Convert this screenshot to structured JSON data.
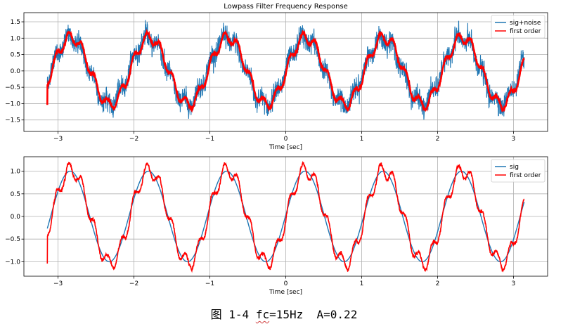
{
  "caption": {
    "prefix": "图 1-4 ",
    "fc": "fc",
    "suffix": "=15Hz  A=0.22"
  },
  "colors": {
    "blue": "#1f77b4",
    "red": "#ff0000",
    "grid": "#b0b0b0"
  },
  "chart_data": [
    {
      "type": "line",
      "title": "Lowpass Filter Frequency Response",
      "xlabel": "Time [sec]",
      "ylabel": "",
      "xlim": [
        -3.45,
        3.45
      ],
      "ylim": [
        -1.85,
        1.78
      ],
      "xticks": [
        -3,
        -2,
        -1,
        0,
        1,
        2,
        3
      ],
      "xtick_labels": [
        "−3",
        "−2",
        "−1",
        "0",
        "1",
        "2",
        "3"
      ],
      "yticks": [
        -1.5,
        -1.0,
        -0.5,
        0.0,
        0.5,
        1.0,
        1.5
      ],
      "ytick_labels": [
        "−1.5",
        "−1.0",
        "−0.5",
        "0.0",
        "0.5",
        "1.0",
        "1.5"
      ],
      "grid": true,
      "legend": "top-right",
      "x_range": [
        -3.14159,
        3.14159
      ],
      "series": [
        {
          "name": "sig+noise",
          "color": "#1f77b4",
          "formula": "sin(2*pi*f0*t + 0.03) + noise",
          "f0": 0.97,
          "noise_amplitude": 0.22
        },
        {
          "name": "first order",
          "color": "#ff0000",
          "formula": "lowpass-filtered sig+noise (fc = 15 Hz)"
        }
      ]
    },
    {
      "type": "line",
      "title": "",
      "xlabel": "Time [sec]",
      "ylabel": "",
      "xlim": [
        -3.45,
        3.45
      ],
      "ylim": [
        -1.32,
        1.32
      ],
      "xticks": [
        -3,
        -2,
        -1,
        0,
        1,
        2,
        3
      ],
      "xtick_labels": [
        "−3",
        "−2",
        "−1",
        "0",
        "1",
        "2",
        "3"
      ],
      "yticks": [
        -1.0,
        -0.5,
        0.0,
        0.5,
        1.0
      ],
      "ytick_labels": [
        "−1.0",
        "−0.5",
        "0.0",
        "0.5",
        "1.0"
      ],
      "grid": true,
      "legend": "top-right",
      "x_range": [
        -3.14159,
        3.14159
      ],
      "series": [
        {
          "name": "sig",
          "color": "#1f77b4",
          "formula": "sin(2*pi*f0*t + 0.03)",
          "f0": 0.97
        },
        {
          "name": "first order",
          "color": "#ff0000",
          "formula": "lowpass-filtered sig+noise (fc = 15 Hz)"
        }
      ]
    }
  ]
}
